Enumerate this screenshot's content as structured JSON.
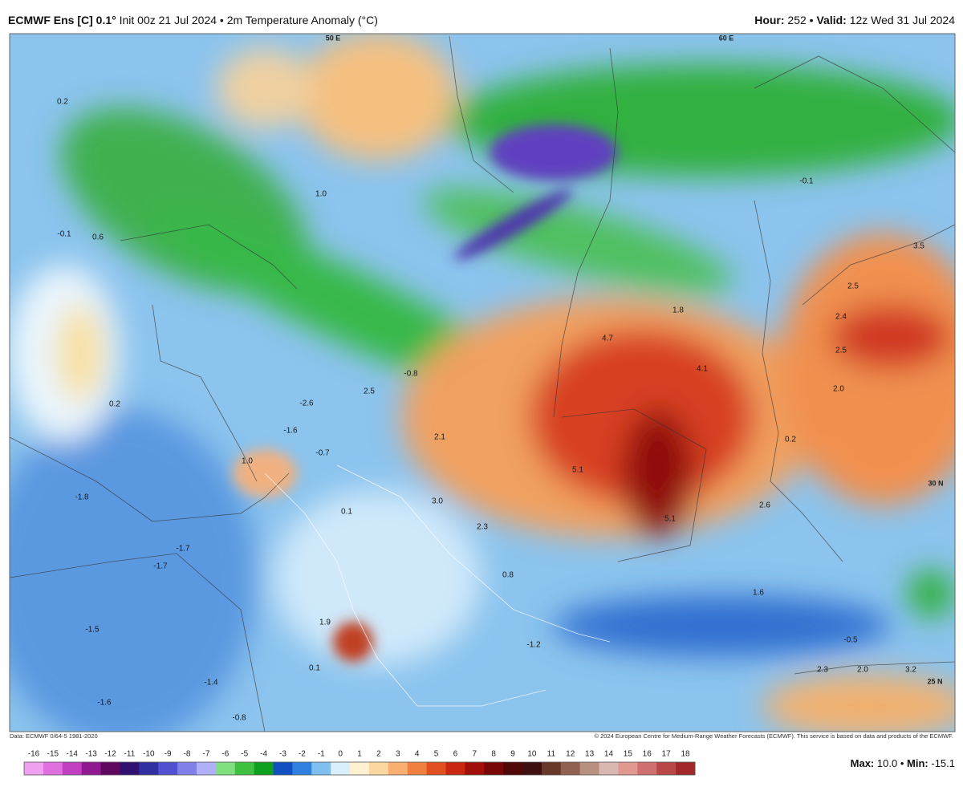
{
  "header": {
    "model": "ECMWF Ens [C] 0.1°",
    "info": "Init 00z 21 Jul 2024 • 2m Temperature Anomaly (°C)",
    "hour_label": "Hour:",
    "hour": "252",
    "separator": "•",
    "valid_label": "Valid:",
    "valid": "12z Wed 31 Jul 2024"
  },
  "map": {
    "grid_labels": [
      "50 E",
      "60 E",
      "30 N",
      "25 N"
    ],
    "labels": [
      "0.2",
      "-0.1",
      "0.6",
      "1.0",
      "-0.1",
      "3.5",
      "2.5",
      "2.4",
      "2.5",
      "2.0",
      "1.8",
      "4.7",
      "4.1",
      "-0.8",
      "2.5",
      "0.2",
      "-2.6",
      "-1.6",
      "2.1",
      "0.2",
      "-0.7",
      "1.0",
      "5.1",
      "5.1",
      "2.6",
      "-1.8",
      "0.1",
      "3.0",
      "2.3",
      "-1.7",
      "-1.7",
      "0.8",
      "1.6",
      "-1.5",
      "1.9",
      "-1.2",
      "-0.5",
      "0.1",
      "-1.4",
      "-1.6",
      "-0.8",
      "2.3",
      "2.0",
      "3.2"
    ]
  },
  "footer": {
    "source": "Data: ECMWF 0/64-5 1981-2020",
    "copyright": "© 2024 European Centre for Medium-Range Weather Forecasts (ECMWF). This service is based on data and products of the ECMWF.",
    "max_label": "Max:",
    "max": "10.0",
    "separator": "•",
    "min_label": "Min:",
    "min": "-15.1"
  },
  "colorbar": {
    "ticks": [
      -16,
      -15,
      -14,
      -13,
      -12,
      -11,
      -10,
      -9,
      -8,
      -7,
      -6,
      -5,
      -4,
      -3,
      -2,
      -1,
      0,
      1,
      2,
      3,
      4,
      5,
      6,
      7,
      8,
      9,
      10,
      11,
      12,
      13,
      14,
      15,
      16,
      17,
      18
    ],
    "colors": [
      "#f0a0f0",
      "#e070e0",
      "#c040c0",
      "#901890",
      "#600860",
      "#301070",
      "#3030a0",
      "#5050d0",
      "#8080e8",
      "#b0b0f8",
      "#80e080",
      "#40c040",
      "#10a020",
      "#1050c0",
      "#3080e0",
      "#80c0f0",
      "#d8f0fc",
      "#fff0d0",
      "#fcd8a0",
      "#f8b070",
      "#f08040",
      "#e05020",
      "#c82810",
      "#a01008",
      "#780808",
      "#500808",
      "#401010",
      "#683828",
      "#906050",
      "#b89080",
      "#d8b8b0",
      "#e09890",
      "#d07070",
      "#b84848",
      "#a02828"
    ]
  }
}
